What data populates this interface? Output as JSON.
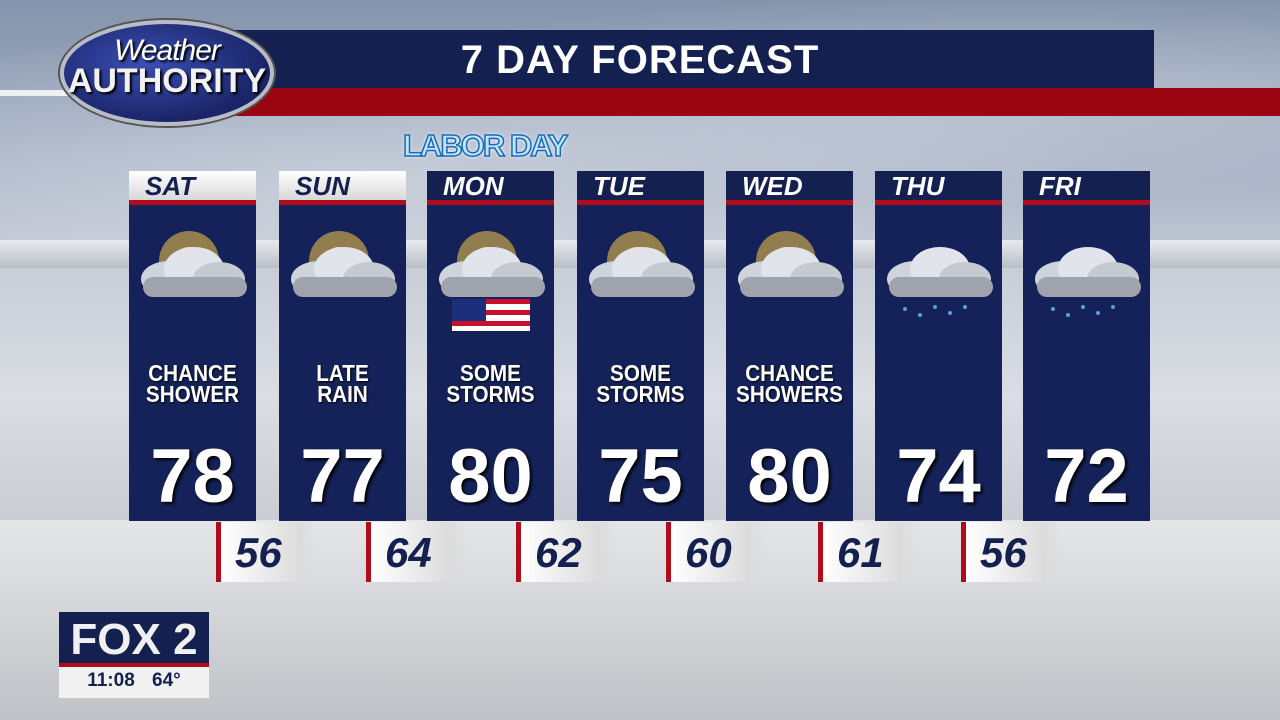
{
  "header": {
    "title": "7 DAY FORECAST",
    "logo_line1": "Weather",
    "logo_line2": "AUTHORITY"
  },
  "holiday_label": "LABOR DAY",
  "days": [
    {
      "day": "SAT",
      "condition": [
        "CHANCE",
        "SHOWER"
      ],
      "high": "78",
      "icon": "partly-cloudy-sun-icon"
    },
    {
      "day": "SUN",
      "condition": [
        "LATE",
        "RAIN"
      ],
      "high": "77",
      "icon": "partly-cloudy-sun-icon"
    },
    {
      "day": "MON",
      "condition": [
        "SOME",
        "STORMS"
      ],
      "high": "80",
      "icon": "partly-cloudy-sun-flag-icon"
    },
    {
      "day": "TUE",
      "condition": [
        "SOME",
        "STORMS"
      ],
      "high": "75",
      "icon": "partly-cloudy-sun-icon"
    },
    {
      "day": "WED",
      "condition": [
        "CHANCE",
        "SHOWERS"
      ],
      "high": "80",
      "icon": "partly-cloudy-sun-icon"
    },
    {
      "day": "THU",
      "condition": [
        "",
        ""
      ],
      "high": "74",
      "icon": "rain-cloud-icon"
    },
    {
      "day": "FRI",
      "condition": [
        "",
        ""
      ],
      "high": "72",
      "icon": "rain-cloud-icon"
    }
  ],
  "lows": [
    "56",
    "64",
    "62",
    "60",
    "61",
    "56"
  ],
  "station": {
    "name": "FOX 2",
    "time": "11:08",
    "temp": "64°"
  },
  "colors": {
    "navy": "#14204f",
    "red": "#9b0512"
  }
}
